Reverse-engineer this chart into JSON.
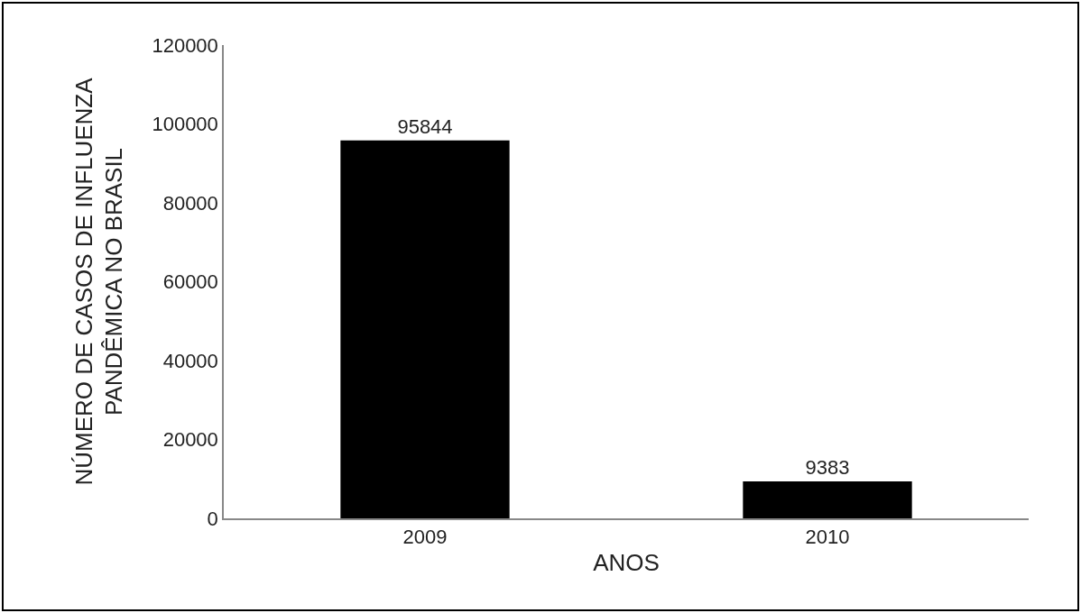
{
  "chart_data": {
    "type": "bar",
    "xlabel": "ANOS",
    "ylabel": "NÚMERO DE CASOS DE INFLUENZA\nPANDÊMICA NO BRASIL",
    "categories": [
      "2009",
      "2010"
    ],
    "values": [
      95844,
      9383
    ],
    "color": "#000000",
    "ylim": [
      0,
      120000
    ],
    "yticks": [
      0,
      20000,
      40000,
      60000,
      80000,
      100000,
      120000
    ],
    "legend": false,
    "data_labels": true
  }
}
